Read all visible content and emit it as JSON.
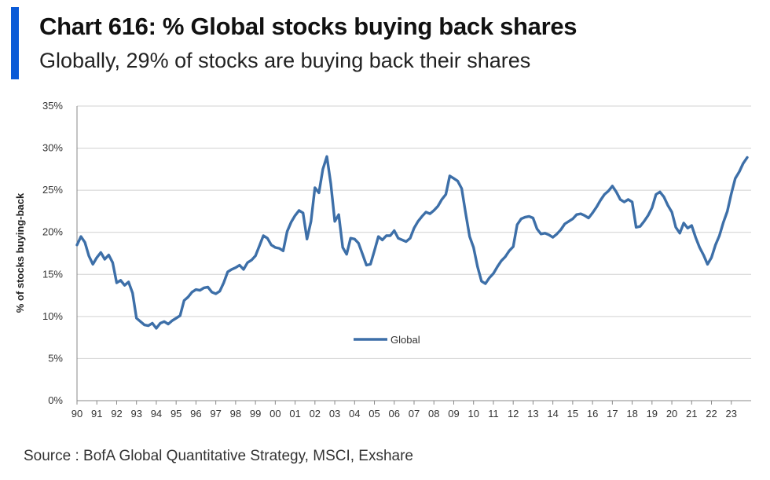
{
  "header": {
    "title": "Chart 616: % Global stocks buying back shares",
    "subtitle": "Globally, 29% of stocks are buying back their shares",
    "accent_color": "#0a5ad7"
  },
  "footer": {
    "source": "Source : BofA Global Quantitative Strategy, MSCI, Exshare"
  },
  "chart_data": {
    "type": "line",
    "xlabel": "",
    "ylabel": "% of stocks buying-back",
    "ylim": [
      0,
      35
    ],
    "yticks": [
      "0%",
      "5%",
      "10%",
      "15%",
      "20%",
      "25%",
      "30%",
      "35%"
    ],
    "x_tick_labels": [
      "90",
      "91",
      "92",
      "93",
      "94",
      "95",
      "96",
      "97",
      "98",
      "99",
      "00",
      "01",
      "02",
      "03",
      "04",
      "05",
      "06",
      "07",
      "08",
      "09",
      "10",
      "11",
      "12",
      "13",
      "14",
      "15",
      "16",
      "17",
      "18",
      "19",
      "20",
      "21",
      "22",
      "23"
    ],
    "xlim": [
      1990.0,
      2024.0
    ],
    "grid": "horizontal",
    "legend_position": "center",
    "series": [
      {
        "name": "Global",
        "color": "#3d6fa8",
        "points": [
          [
            1990.0,
            18.5
          ],
          [
            1990.2,
            19.5
          ],
          [
            1990.4,
            18.8
          ],
          [
            1990.6,
            17.2
          ],
          [
            1990.8,
            16.2
          ],
          [
            1991.0,
            17.0
          ],
          [
            1991.2,
            17.6
          ],
          [
            1991.4,
            16.8
          ],
          [
            1991.6,
            17.3
          ],
          [
            1991.8,
            16.4
          ],
          [
            1992.0,
            14.0
          ],
          [
            1992.2,
            14.3
          ],
          [
            1992.4,
            13.7
          ],
          [
            1992.6,
            14.1
          ],
          [
            1992.8,
            12.8
          ],
          [
            1993.0,
            9.8
          ],
          [
            1993.2,
            9.4
          ],
          [
            1993.4,
            9.0
          ],
          [
            1993.6,
            8.9
          ],
          [
            1993.8,
            9.2
          ],
          [
            1994.0,
            8.6
          ],
          [
            1994.2,
            9.2
          ],
          [
            1994.4,
            9.4
          ],
          [
            1994.6,
            9.1
          ],
          [
            1994.8,
            9.5
          ],
          [
            1995.0,
            9.8
          ],
          [
            1995.2,
            10.1
          ],
          [
            1995.4,
            11.9
          ],
          [
            1995.6,
            12.3
          ],
          [
            1995.8,
            12.9
          ],
          [
            1996.0,
            13.2
          ],
          [
            1996.2,
            13.1
          ],
          [
            1996.4,
            13.4
          ],
          [
            1996.6,
            13.5
          ],
          [
            1996.8,
            12.9
          ],
          [
            1997.0,
            12.7
          ],
          [
            1997.2,
            13.0
          ],
          [
            1997.4,
            14.0
          ],
          [
            1997.6,
            15.3
          ],
          [
            1997.8,
            15.6
          ],
          [
            1998.0,
            15.8
          ],
          [
            1998.2,
            16.1
          ],
          [
            1998.4,
            15.6
          ],
          [
            1998.6,
            16.4
          ],
          [
            1998.8,
            16.7
          ],
          [
            1999.0,
            17.2
          ],
          [
            1999.2,
            18.4
          ],
          [
            1999.4,
            19.6
          ],
          [
            1999.6,
            19.3
          ],
          [
            1999.8,
            18.5
          ],
          [
            2000.0,
            18.2
          ],
          [
            2000.2,
            18.1
          ],
          [
            2000.4,
            17.8
          ],
          [
            2000.6,
            20.1
          ],
          [
            2000.8,
            21.2
          ],
          [
            2001.0,
            22.0
          ],
          [
            2001.2,
            22.6
          ],
          [
            2001.4,
            22.3
          ],
          [
            2001.6,
            19.2
          ],
          [
            2001.8,
            21.3
          ],
          [
            2002.0,
            25.3
          ],
          [
            2002.2,
            24.7
          ],
          [
            2002.4,
            27.5
          ],
          [
            2002.6,
            29.0
          ],
          [
            2002.8,
            25.8
          ],
          [
            2003.0,
            21.3
          ],
          [
            2003.2,
            22.1
          ],
          [
            2003.4,
            18.2
          ],
          [
            2003.6,
            17.4
          ],
          [
            2003.8,
            19.3
          ],
          [
            2004.0,
            19.2
          ],
          [
            2004.2,
            18.7
          ],
          [
            2004.4,
            17.4
          ],
          [
            2004.6,
            16.1
          ],
          [
            2004.8,
            16.2
          ],
          [
            2005.0,
            17.8
          ],
          [
            2005.2,
            19.5
          ],
          [
            2005.4,
            19.1
          ],
          [
            2005.6,
            19.6
          ],
          [
            2005.8,
            19.6
          ],
          [
            2006.0,
            20.2
          ],
          [
            2006.2,
            19.3
          ],
          [
            2006.4,
            19.1
          ],
          [
            2006.6,
            18.9
          ],
          [
            2006.8,
            19.3
          ],
          [
            2007.0,
            20.5
          ],
          [
            2007.2,
            21.3
          ],
          [
            2007.4,
            21.9
          ],
          [
            2007.6,
            22.4
          ],
          [
            2007.8,
            22.2
          ],
          [
            2008.0,
            22.6
          ],
          [
            2008.2,
            23.1
          ],
          [
            2008.4,
            23.9
          ],
          [
            2008.6,
            24.5
          ],
          [
            2008.8,
            26.7
          ],
          [
            2009.0,
            26.4
          ],
          [
            2009.2,
            26.1
          ],
          [
            2009.4,
            25.2
          ],
          [
            2009.6,
            22.3
          ],
          [
            2009.8,
            19.5
          ],
          [
            2010.0,
            18.2
          ],
          [
            2010.2,
            15.9
          ],
          [
            2010.4,
            14.2
          ],
          [
            2010.6,
            13.9
          ],
          [
            2010.8,
            14.6
          ],
          [
            2011.0,
            15.1
          ],
          [
            2011.2,
            15.9
          ],
          [
            2011.4,
            16.6
          ],
          [
            2011.6,
            17.1
          ],
          [
            2011.8,
            17.8
          ],
          [
            2012.0,
            18.3
          ],
          [
            2012.2,
            20.9
          ],
          [
            2012.4,
            21.6
          ],
          [
            2012.6,
            21.8
          ],
          [
            2012.8,
            21.9
          ],
          [
            2013.0,
            21.7
          ],
          [
            2013.2,
            20.4
          ],
          [
            2013.4,
            19.8
          ],
          [
            2013.6,
            19.9
          ],
          [
            2013.8,
            19.7
          ],
          [
            2014.0,
            19.4
          ],
          [
            2014.2,
            19.8
          ],
          [
            2014.4,
            20.3
          ],
          [
            2014.6,
            21.0
          ],
          [
            2014.8,
            21.3
          ],
          [
            2015.0,
            21.6
          ],
          [
            2015.2,
            22.1
          ],
          [
            2015.4,
            22.2
          ],
          [
            2015.6,
            22.0
          ],
          [
            2015.8,
            21.7
          ],
          [
            2016.0,
            22.3
          ],
          [
            2016.2,
            23.0
          ],
          [
            2016.4,
            23.8
          ],
          [
            2016.6,
            24.5
          ],
          [
            2016.8,
            24.9
          ],
          [
            2017.0,
            25.5
          ],
          [
            2017.2,
            24.8
          ],
          [
            2017.4,
            23.9
          ],
          [
            2017.6,
            23.6
          ],
          [
            2017.8,
            23.9
          ],
          [
            2018.0,
            23.6
          ],
          [
            2018.2,
            20.6
          ],
          [
            2018.4,
            20.7
          ],
          [
            2018.6,
            21.3
          ],
          [
            2018.8,
            22.0
          ],
          [
            2019.0,
            22.9
          ],
          [
            2019.2,
            24.5
          ],
          [
            2019.4,
            24.8
          ],
          [
            2019.6,
            24.2
          ],
          [
            2019.8,
            23.2
          ],
          [
            2020.0,
            22.4
          ],
          [
            2020.2,
            20.6
          ],
          [
            2020.4,
            19.9
          ],
          [
            2020.6,
            21.1
          ],
          [
            2020.8,
            20.5
          ],
          [
            2021.0,
            20.8
          ],
          [
            2021.2,
            19.4
          ],
          [
            2021.4,
            18.2
          ],
          [
            2021.6,
            17.3
          ],
          [
            2021.8,
            16.2
          ],
          [
            2022.0,
            17.0
          ],
          [
            2022.2,
            18.5
          ],
          [
            2022.4,
            19.6
          ],
          [
            2022.6,
            21.2
          ],
          [
            2022.8,
            22.5
          ],
          [
            2023.0,
            24.6
          ],
          [
            2023.2,
            26.4
          ],
          [
            2023.4,
            27.2
          ],
          [
            2023.6,
            28.2
          ],
          [
            2023.8,
            28.9
          ]
        ]
      }
    ]
  }
}
